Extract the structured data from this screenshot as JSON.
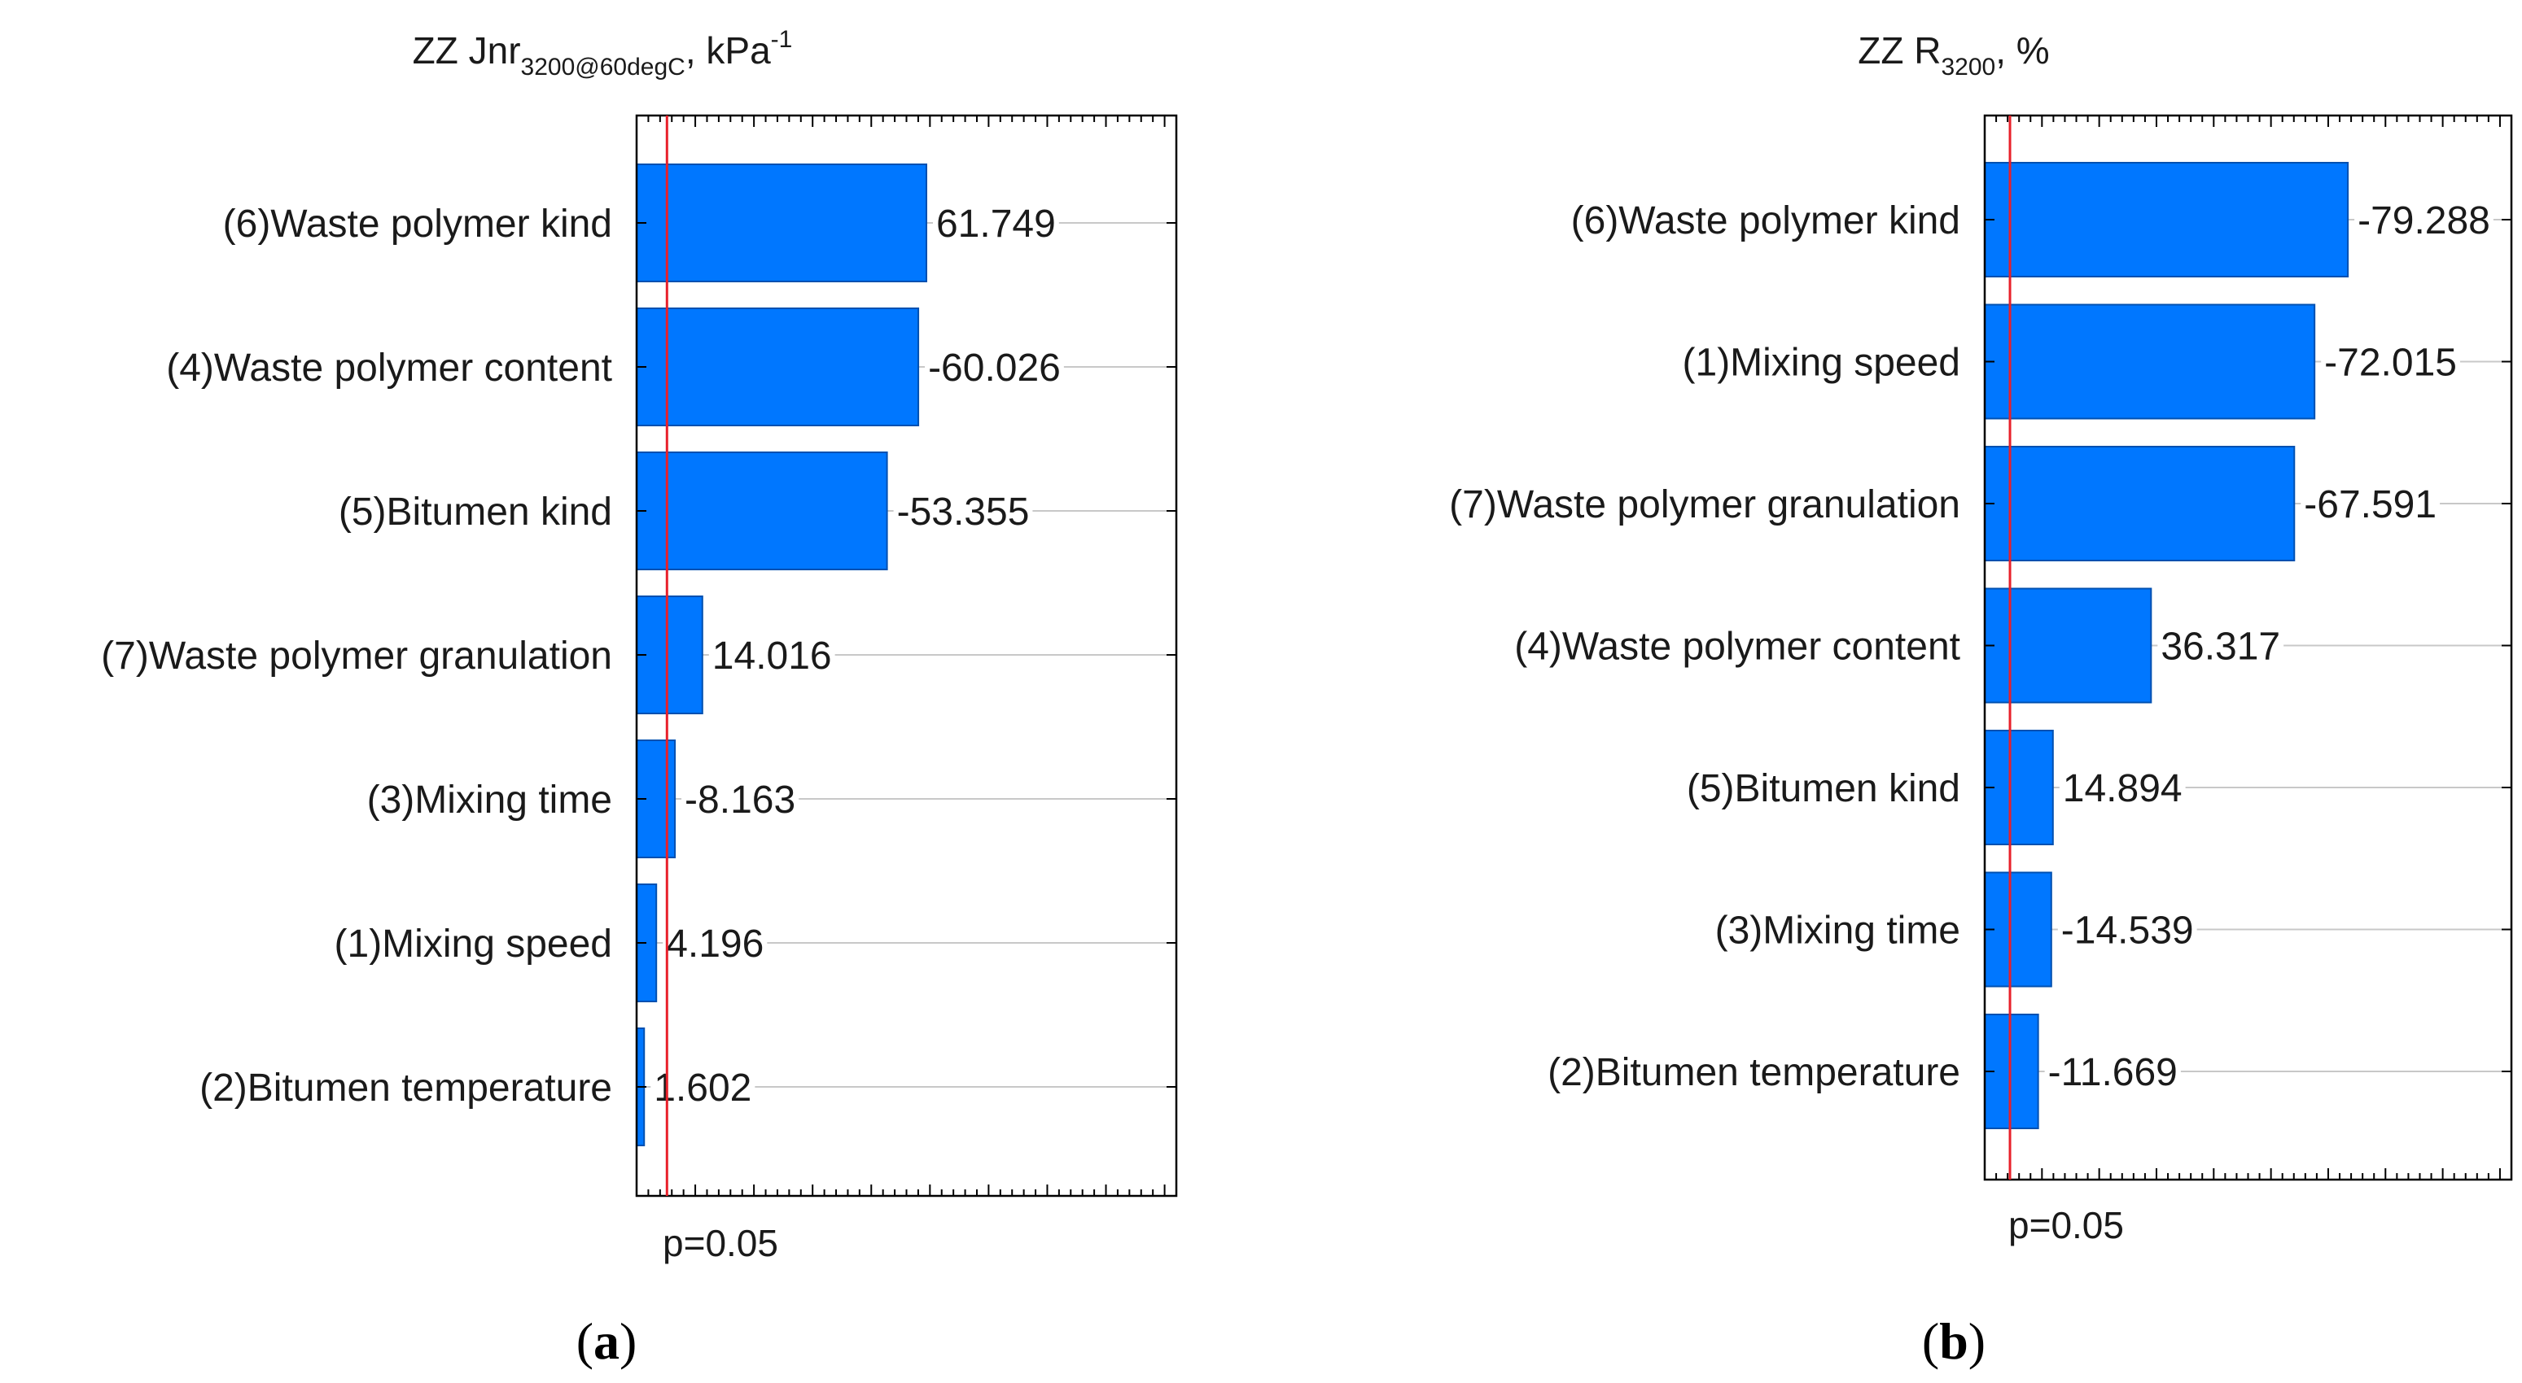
{
  "chart_data": [
    {
      "type": "bar",
      "orientation": "horizontal",
      "title": "ZZ Jnr",
      "title_subscript": "3200@60degC",
      "title_unit": ", kPa",
      "title_superscript": "-1",
      "categories": [
        "(6)Waste polymer kind",
        "(4)Waste polymer content",
        "(5)Bitumen kind",
        "(7)Waste polymer granulation",
        "(3)Mixing time",
        "(1)Mixing speed",
        "(2)Bitumen temperature"
      ],
      "values": [
        61.749,
        -60.026,
        -53.355,
        14.016,
        -8.163,
        4.196,
        1.602
      ],
      "value_labels": [
        "61.749",
        "-60.026",
        "-53.355",
        "14.016",
        "-8.163",
        "4.196",
        "1.602"
      ],
      "xlim": [
        0,
        115
      ],
      "reference_line": {
        "value": 1.96,
        "label": "p=0.05",
        "color": "#e8202a"
      },
      "bar_color": "#0077ff",
      "grid": true,
      "panel_label": {
        "open": "(",
        "letter": "a",
        "close": ")"
      }
    },
    {
      "type": "bar",
      "orientation": "horizontal",
      "title": "ZZ R",
      "title_subscript": "3200",
      "title_unit": ", %",
      "title_superscript": "",
      "categories": [
        "(6)Waste polymer kind",
        "(1)Mixing speed",
        "(7)Waste polymer granulation",
        "(4)Waste polymer content",
        "(5)Bitumen kind",
        "(3)Mixing time",
        "(2)Bitumen temperature"
      ],
      "values": [
        -79.288,
        -72.015,
        -67.591,
        36.317,
        14.894,
        -14.539,
        -11.669
      ],
      "value_labels": [
        "-79.288",
        "-72.015",
        "-67.591",
        "36.317",
        "14.894",
        "-14.539",
        "-11.669"
      ],
      "xlim": [
        0,
        115
      ],
      "reference_line": {
        "value": 1.96,
        "label": "p=0.05",
        "color": "#e8202a"
      },
      "bar_color": "#0077ff",
      "grid": true,
      "panel_label": {
        "open": "(",
        "letter": "b",
        "close": ")"
      }
    }
  ]
}
